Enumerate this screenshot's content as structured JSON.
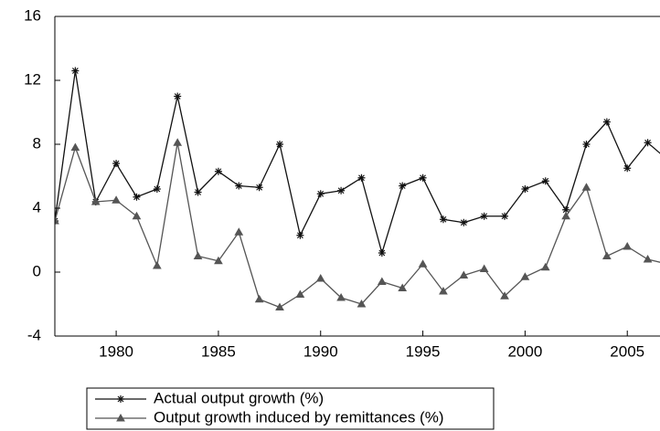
{
  "chart_data": {
    "type": "line",
    "x": [
      1977,
      1978,
      1979,
      1980,
      1981,
      1982,
      1983,
      1984,
      1985,
      1986,
      1987,
      1988,
      1989,
      1990,
      1991,
      1992,
      1993,
      1994,
      1995,
      1996,
      1997,
      1998,
      1999,
      2000,
      2001,
      2002,
      2003,
      2004,
      2005,
      2006,
      2007
    ],
    "series": [
      {
        "name": "Actual output growth (%)",
        "color": "#111111",
        "marker": "asterisk",
        "values": [
          3.2,
          12.6,
          4.4,
          6.8,
          4.7,
          5.2,
          11.0,
          5.0,
          6.3,
          5.4,
          5.3,
          8.0,
          2.3,
          4.9,
          5.1,
          5.9,
          1.2,
          5.4,
          5.9,
          3.3,
          3.1,
          3.5,
          3.5,
          5.2,
          5.7,
          3.9,
          8.0,
          9.4,
          6.5,
          8.1,
          7.0
        ]
      },
      {
        "name": "Output growth induced by remittances (%)",
        "color": "#555555",
        "marker": "triangle",
        "values": [
          3.2,
          7.8,
          4.4,
          4.5,
          3.5,
          0.4,
          8.1,
          1.0,
          0.7,
          2.5,
          -1.7,
          -2.2,
          -1.4,
          -0.4,
          -1.6,
          -2.0,
          -0.6,
          -1.0,
          0.5,
          -1.2,
          -0.2,
          0.2,
          -1.5,
          -0.3,
          0.3,
          3.5,
          5.3,
          1.0,
          1.6,
          0.8,
          0.5
        ]
      }
    ],
    "xlim": [
      1977,
      2006.6
    ],
    "xticks": [
      1980,
      1985,
      1990,
      1995,
      2000,
      2005
    ],
    "ylim": [
      -4,
      16
    ],
    "yticks": [
      -4,
      0,
      4,
      8,
      12,
      16
    ],
    "legend": "bottom"
  }
}
